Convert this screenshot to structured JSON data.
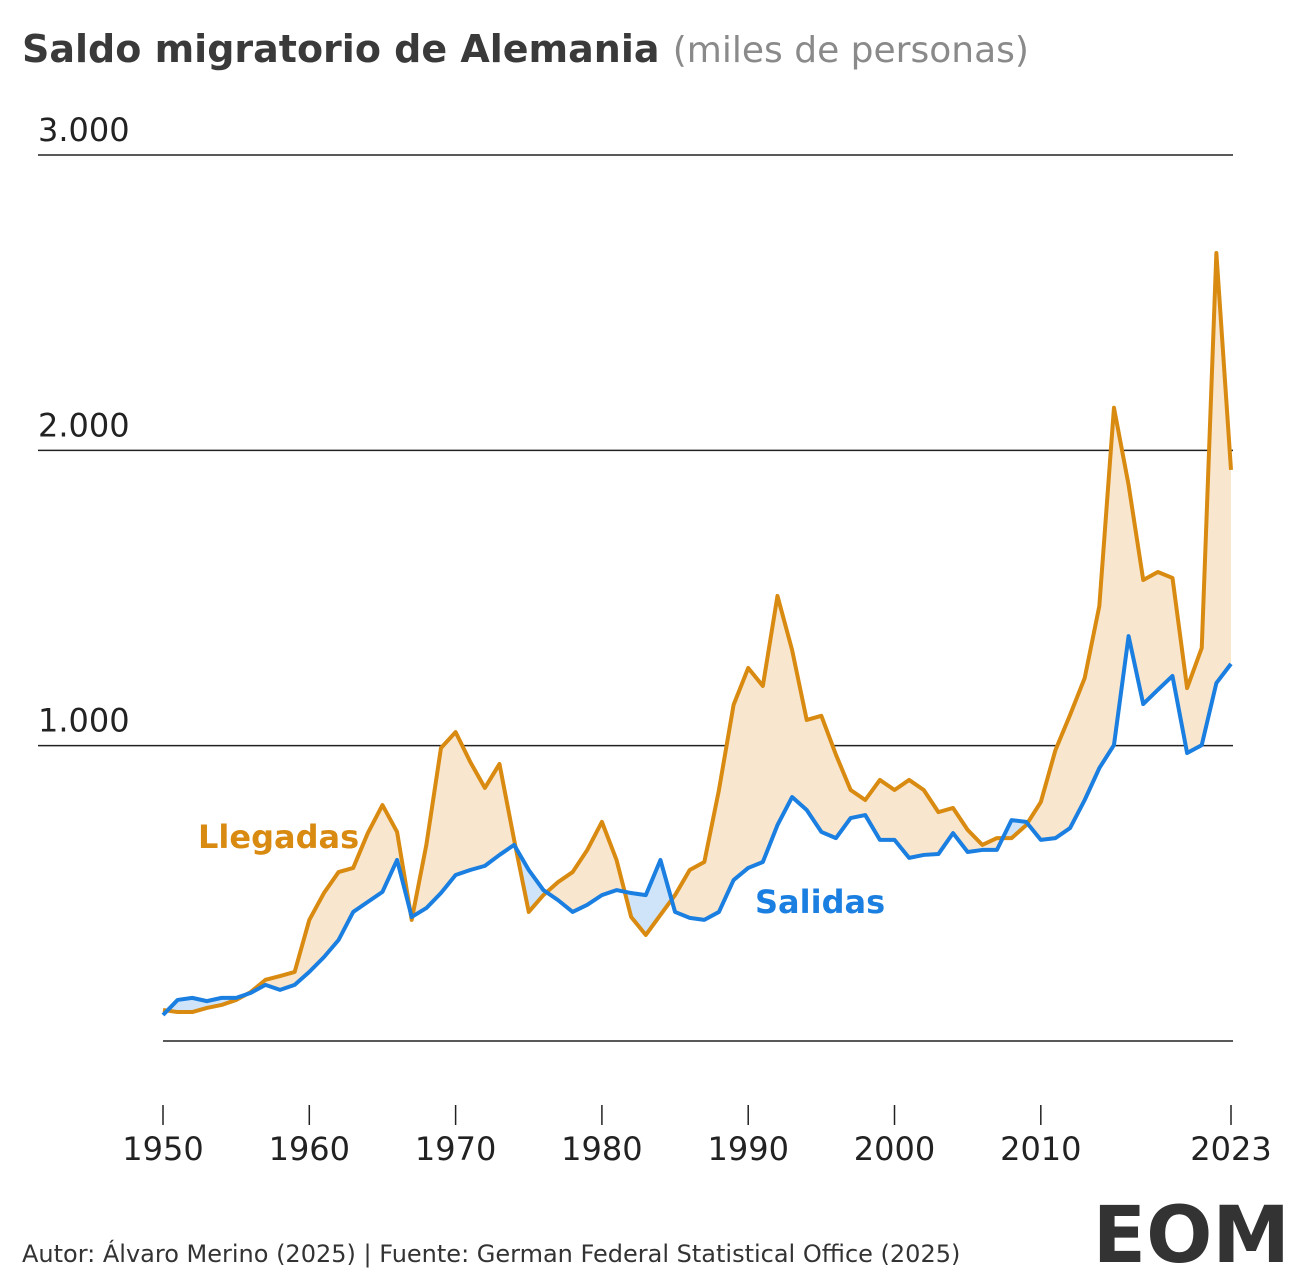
{
  "chart_data": {
    "type": "line",
    "title": "Saldo migratorio de Alemania",
    "subtitle": "(miles de personas)",
    "source": "Autor: Álvaro Merino (2025) | Fuente: German Federal Statistical Office (2025)",
    "logo": "EOM",
    "x": [
      1950,
      1951,
      1952,
      1953,
      1954,
      1955,
      1956,
      1957,
      1958,
      1959,
      1960,
      1961,
      1962,
      1963,
      1964,
      1965,
      1966,
      1967,
      1968,
      1969,
      1970,
      1971,
      1972,
      1973,
      1974,
      1975,
      1976,
      1977,
      1978,
      1979,
      1980,
      1981,
      1982,
      1983,
      1984,
      1985,
      1986,
      1987,
      1988,
      1989,
      1990,
      1991,
      1992,
      1993,
      1994,
      1995,
      1996,
      1997,
      1998,
      1999,
      2000,
      2001,
      2002,
      2003,
      2004,
      2005,
      2006,
      2007,
      2008,
      2009,
      2010,
      2011,
      2012,
      2013,
      2014,
      2015,
      2016,
      2017,
      2018,
      2019,
      2020,
      2021,
      2022,
      2023
    ],
    "series": [
      {
        "name": "Llegadas",
        "color": "#d98a10",
        "fill": "#f8e6cf",
        "values": [
          105,
          98,
          98,
          112,
          122,
          139,
          166,
          207,
          220,
          234,
          410,
          501,
          572,
          586,
          704,
          799,
          708,
          410,
          664,
          992,
          1046,
          945,
          857,
          938,
          681,
          437,
          494,
          538,
          572,
          647,
          742,
          613,
          420,
          359,
          427,
          494,
          579,
          606,
          850,
          1138,
          1263,
          1202,
          1507,
          1324,
          1087,
          1101,
          969,
          850,
          816,
          884,
          850,
          884,
          850,
          775,
          789,
          715,
          664,
          687,
          687,
          731,
          809,
          985,
          1104,
          1229,
          1473,
          2144,
          1883,
          1561,
          1588,
          1568,
          1195,
          1331,
          2668,
          1934
        ]
      },
      {
        "name": "Salidas",
        "color": "#1a7fe0",
        "fill": "#cfe4f8",
        "values": [
          88,
          139,
          146,
          135,
          146,
          146,
          163,
          190,
          173,
          190,
          234,
          284,
          342,
          437,
          471,
          505,
          613,
          420,
          450,
          501,
          562,
          579,
          593,
          630,
          664,
          579,
          511,
          477,
          437,
          461,
          494,
          511,
          501,
          494,
          613,
          437,
          417,
          410,
          437,
          545,
          586,
          606,
          731,
          826,
          782,
          708,
          687,
          755,
          765,
          681,
          681,
          620,
          630,
          633,
          704,
          640,
          647,
          647,
          748,
          742,
          681,
          687,
          721,
          816,
          924,
          1002,
          1371,
          1141,
          1189,
          1236,
          975,
          1002,
          1212,
          1277
        ]
      }
    ],
    "xlim": [
      1950,
      2023
    ],
    "xticks": [
      1950,
      1960,
      1970,
      1980,
      1990,
      2000,
      2010,
      2023
    ],
    "ylim": [
      0,
      3000
    ],
    "yticks": [
      {
        "value": 1000,
        "label": "1.000"
      },
      {
        "value": 2000,
        "label": "2.000"
      },
      {
        "value": 3000,
        "label": "3.000"
      }
    ],
    "grid": true
  }
}
